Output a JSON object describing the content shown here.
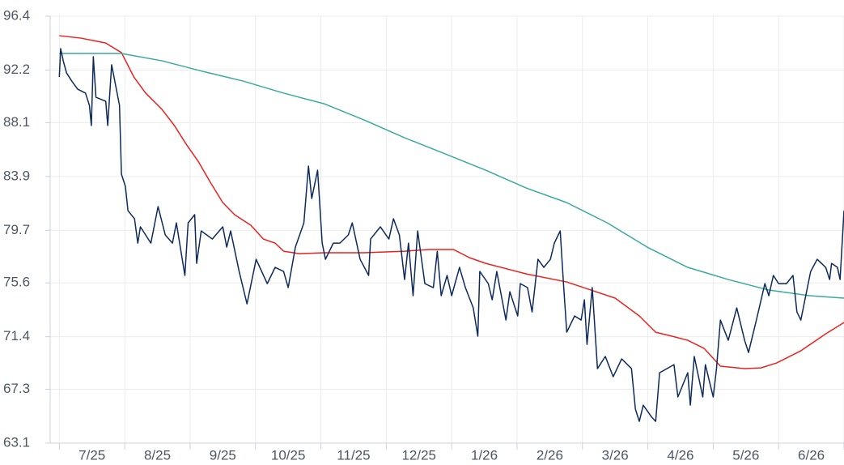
{
  "chart_data": {
    "type": "line",
    "categories": [
      "7/25",
      "8/25",
      "9/25",
      "10/25",
      "11/25",
      "12/25",
      "1/26",
      "2/26",
      "3/26",
      "4/26",
      "5/26",
      "6/26"
    ],
    "xlim": [
      -0.14,
      12
    ],
    "ylim": [
      63.1,
      96.4
    ],
    "yticks": [
      63.1,
      67.3,
      71.4,
      75.6,
      79.7,
      83.9,
      88.1,
      92.2,
      96.4
    ],
    "grid": true,
    "series": [
      {
        "color": "#e8231f",
        "x": [
          0,
          0.33,
          0.71,
          0.95,
          1.14,
          1.32,
          1.57,
          1.76,
          1.94,
          2.13,
          2.31,
          2.5,
          2.68,
          2.93,
          3.12,
          3.3,
          3.43,
          3.67,
          4.05,
          4.66,
          5.28,
          5.65,
          6.03,
          6.27,
          6.52,
          7.14,
          7.76,
          8.13,
          8.5,
          8.87,
          9.12,
          9.37,
          9.61,
          9.86,
          10.11,
          10.48,
          10.73,
          10.97,
          11.34,
          11.72,
          12.0
        ],
        "values": [
          94.88,
          94.69,
          94.31,
          93.56,
          91.66,
          90.4,
          89.13,
          87.87,
          86.42,
          85.03,
          83.44,
          81.86,
          80.92,
          80.09,
          79.02,
          78.7,
          78.07,
          77.88,
          77.95,
          77.95,
          78.07,
          78.2,
          78.2,
          77.57,
          77.12,
          76.3,
          75.67,
          75.04,
          74.41,
          73.02,
          71.75,
          71.44,
          71.12,
          70.49,
          69.1,
          68.91,
          68.97,
          69.35,
          70.3,
          71.62,
          72.51
        ]
      },
      {
        "color": "#3aa99f",
        "x": [
          0,
          0.95,
          1.57,
          2.19,
          2.81,
          3.43,
          4.05,
          4.66,
          5.28,
          5.9,
          6.52,
          7.14,
          7.76,
          8.38,
          8.99,
          9.61,
          10.23,
          10.85,
          11.47,
          12.0
        ],
        "values": [
          93.49,
          93.49,
          92.92,
          92.1,
          91.34,
          90.4,
          89.57,
          88.31,
          86.92,
          85.66,
          84.39,
          83.0,
          81.86,
          80.28,
          78.39,
          76.81,
          75.86,
          75.04,
          74.6,
          74.41
        ]
      },
      {
        "color": "#0d2a5c",
        "x": [
          0,
          0.02,
          0.06,
          0.11,
          0.19,
          0.28,
          0.4,
          0.46,
          0.49,
          0.52,
          0.56,
          0.71,
          0.74,
          0.8,
          0.92,
          0.95,
          1.01,
          1.05,
          1.15,
          1.2,
          1.24,
          1.4,
          1.51,
          1.62,
          1.73,
          1.79,
          1.92,
          1.97,
          2.07,
          2.1,
          2.17,
          2.34,
          2.5,
          2.56,
          2.62,
          2.75,
          2.87,
          3.01,
          3.18,
          3.3,
          3.43,
          3.5,
          3.61,
          3.74,
          3.81,
          3.86,
          3.95,
          4.02,
          4.07,
          4.19,
          4.29,
          4.42,
          4.48,
          4.6,
          4.73,
          4.76,
          4.91,
          5.04,
          5.11,
          5.2,
          5.28,
          5.34,
          5.41,
          5.48,
          5.59,
          5.72,
          5.78,
          5.84,
          5.93,
          6.0,
          6.12,
          6.21,
          6.33,
          6.4,
          6.43,
          6.56,
          6.62,
          6.69,
          6.83,
          6.89,
          7.01,
          7.05,
          7.16,
          7.23,
          7.32,
          7.41,
          7.51,
          7.57,
          7.66,
          7.71,
          7.76,
          7.88,
          7.98,
          8.03,
          8.07,
          8.15,
          8.23,
          8.35,
          8.47,
          8.6,
          8.75,
          8.81,
          8.87,
          8.93,
          9.06,
          9.12,
          9.18,
          9.4,
          9.46,
          9.61,
          9.65,
          9.71,
          9.84,
          9.88,
          10.0,
          10.05,
          10.11,
          10.23,
          10.36,
          10.48,
          10.54,
          10.66,
          10.79,
          10.85,
          10.92,
          11.0,
          11.12,
          11.22,
          11.28,
          11.34,
          11.49,
          11.59,
          11.72,
          11.78,
          11.81,
          11.9,
          11.94,
          12.0
        ],
        "values": [
          91.66,
          93.87,
          92.92,
          91.98,
          91.34,
          90.71,
          90.4,
          89.45,
          87.87,
          93.24,
          90.08,
          89.76,
          87.87,
          92.61,
          89.45,
          84.08,
          83.13,
          81.23,
          80.6,
          78.7,
          79.97,
          78.7,
          81.55,
          79.34,
          78.7,
          80.28,
          76.18,
          80.28,
          80.92,
          77.12,
          79.65,
          79.02,
          79.97,
          78.39,
          79.65,
          76.49,
          73.96,
          77.44,
          75.54,
          76.81,
          76.49,
          75.23,
          78.39,
          80.28,
          84.71,
          82.18,
          84.39,
          78.7,
          77.44,
          78.7,
          78.7,
          79.34,
          80.28,
          77.44,
          76.18,
          79.02,
          79.97,
          79.02,
          80.6,
          79.34,
          75.86,
          78.7,
          74.6,
          79.65,
          75.54,
          75.23,
          78.07,
          74.6,
          76.18,
          74.6,
          76.81,
          75.23,
          73.65,
          71.44,
          76.49,
          75.54,
          74.28,
          76.49,
          72.7,
          74.91,
          73.02,
          75.54,
          75.23,
          73.33,
          77.44,
          76.81,
          77.44,
          78.7,
          79.65,
          75.54,
          71.75,
          73.02,
          72.7,
          74.28,
          70.8,
          75.23,
          68.91,
          69.86,
          68.28,
          69.67,
          68.91,
          65.75,
          64.8,
          66.06,
          65.12,
          64.8,
          68.59,
          69.22,
          66.7,
          68.59,
          66.06,
          69.86,
          66.7,
          69.22,
          66.7,
          68.91,
          72.7,
          71.12,
          73.65,
          71.12,
          70.17,
          72.7,
          75.54,
          74.6,
          76.18,
          75.54,
          75.54,
          76.18,
          73.33,
          72.7,
          76.49,
          77.44,
          76.81,
          75.86,
          77.12,
          76.81,
          75.86,
          81.23
        ]
      }
    ]
  }
}
